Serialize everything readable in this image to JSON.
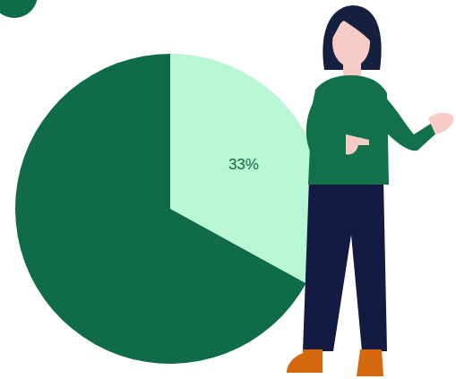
{
  "chart_data": {
    "type": "pie",
    "values": [
      33,
      67
    ],
    "value_labels": [
      "33%",
      null
    ],
    "colors": [
      "#b9f7d4",
      "#0f6b48"
    ]
  }
}
